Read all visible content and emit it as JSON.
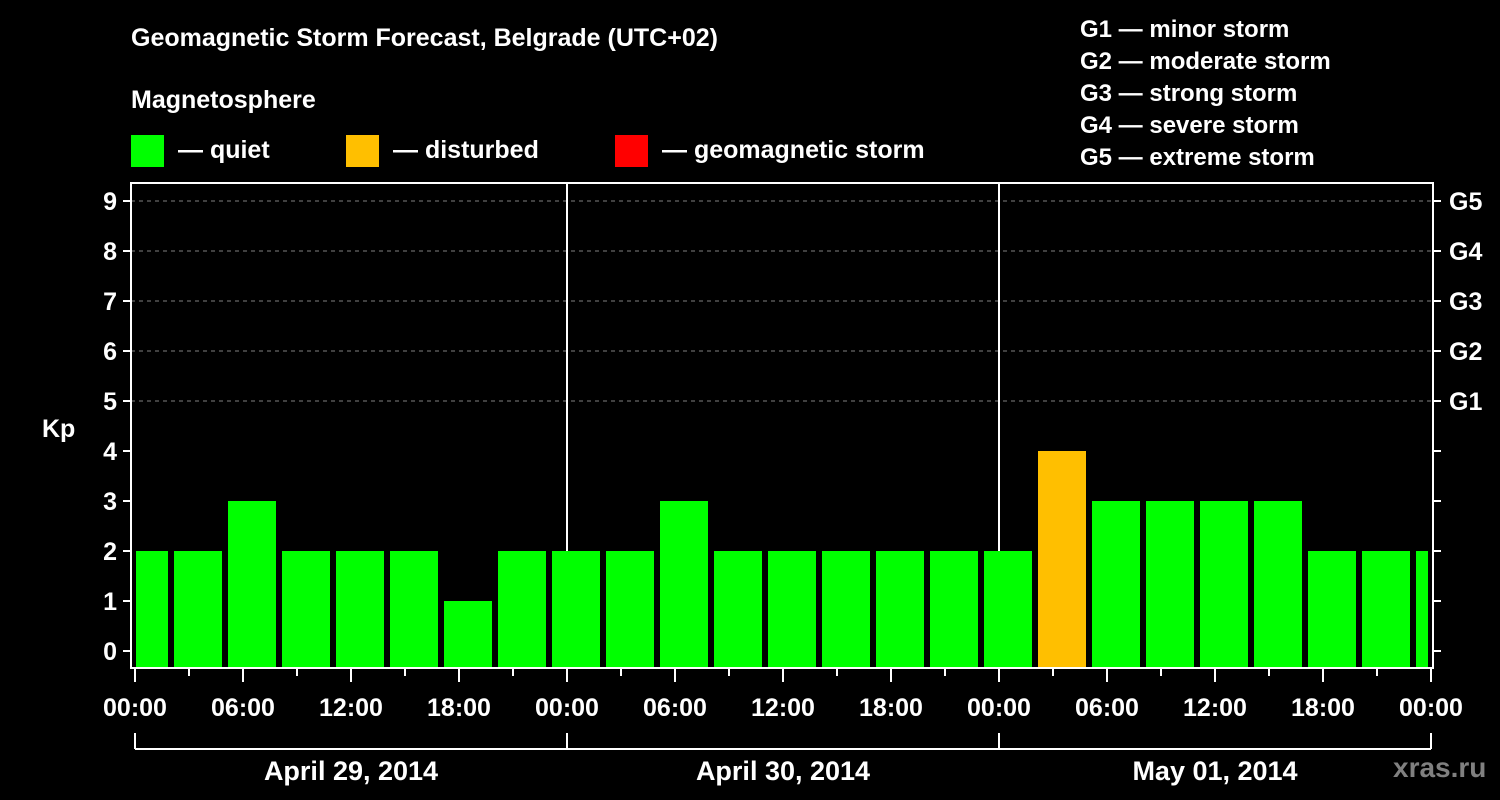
{
  "header": {
    "title": "Geomagnetic Storm Forecast, Belgrade (UTC+02)",
    "subtitle": "Magnetosphere"
  },
  "legend": [
    {
      "label": "— quiet",
      "color": "#00ff00"
    },
    {
      "label": "— disturbed",
      "color": "#ffbf00"
    },
    {
      "label": "— geomagnetic storm",
      "color": "#ff0000"
    }
  ],
  "storm_scale": [
    "G1 — minor storm",
    "G2 — moderate storm",
    "G3 — strong storm",
    "G4 — severe storm",
    "G5 — extreme storm"
  ],
  "watermark": "xras.ru",
  "chart_data": {
    "type": "bar",
    "title": "Geomagnetic Storm Forecast, Belgrade (UTC+02)",
    "xlabel": "",
    "ylabel": "Kp",
    "ylim": [
      0,
      9
    ],
    "y_ticks": [
      "0",
      "1",
      "2",
      "3",
      "4",
      "5",
      "6",
      "7",
      "8",
      "9"
    ],
    "right_ticks": [
      {
        "kp": 5,
        "label": "G1"
      },
      {
        "kp": 6,
        "label": "G2"
      },
      {
        "kp": 7,
        "label": "G3"
      },
      {
        "kp": 8,
        "label": "G4"
      },
      {
        "kp": 9,
        "label": "G5"
      }
    ],
    "grid": "dashed horizontal lines at Kp 5-9",
    "x_tick_labels": [
      "00:00",
      "06:00",
      "12:00",
      "18:00",
      "00:00",
      "06:00",
      "12:00",
      "18:00",
      "00:00",
      "06:00",
      "12:00",
      "18:00",
      "00:00"
    ],
    "days": [
      "April 29, 2014",
      "April 30, 2014",
      "May 01, 2014"
    ],
    "interval_hours": 3,
    "categories": [
      "Apr29 00:00",
      "Apr29 01:00",
      "Apr29 04:00",
      "Apr29 07:00",
      "Apr29 10:00",
      "Apr29 13:00",
      "Apr29 16:00",
      "Apr29 19:00",
      "Apr29 22:00",
      "Apr30 01:00",
      "Apr30 04:00",
      "Apr30 07:00",
      "Apr30 10:00",
      "Apr30 13:00",
      "Apr30 16:00",
      "Apr30 19:00",
      "Apr30 22:00",
      "May01 01:00",
      "May01 04:00",
      "May01 07:00",
      "May01 10:00",
      "May01 13:00",
      "May01 16:00",
      "May01 19:00",
      "May01 22:00"
    ],
    "values": [
      2,
      2,
      3,
      2,
      2,
      2,
      1,
      2,
      2,
      2,
      3,
      2,
      2,
      2,
      2,
      2,
      2,
      4,
      3,
      3,
      3,
      3,
      2,
      2,
      2
    ],
    "status": [
      "quiet",
      "quiet",
      "quiet",
      "quiet",
      "quiet",
      "quiet",
      "quiet",
      "quiet",
      "quiet",
      "quiet",
      "quiet",
      "quiet",
      "quiet",
      "quiet",
      "quiet",
      "quiet",
      "quiet",
      "disturbed",
      "quiet",
      "quiet",
      "quiet",
      "quiet",
      "quiet",
      "quiet",
      "quiet"
    ]
  }
}
